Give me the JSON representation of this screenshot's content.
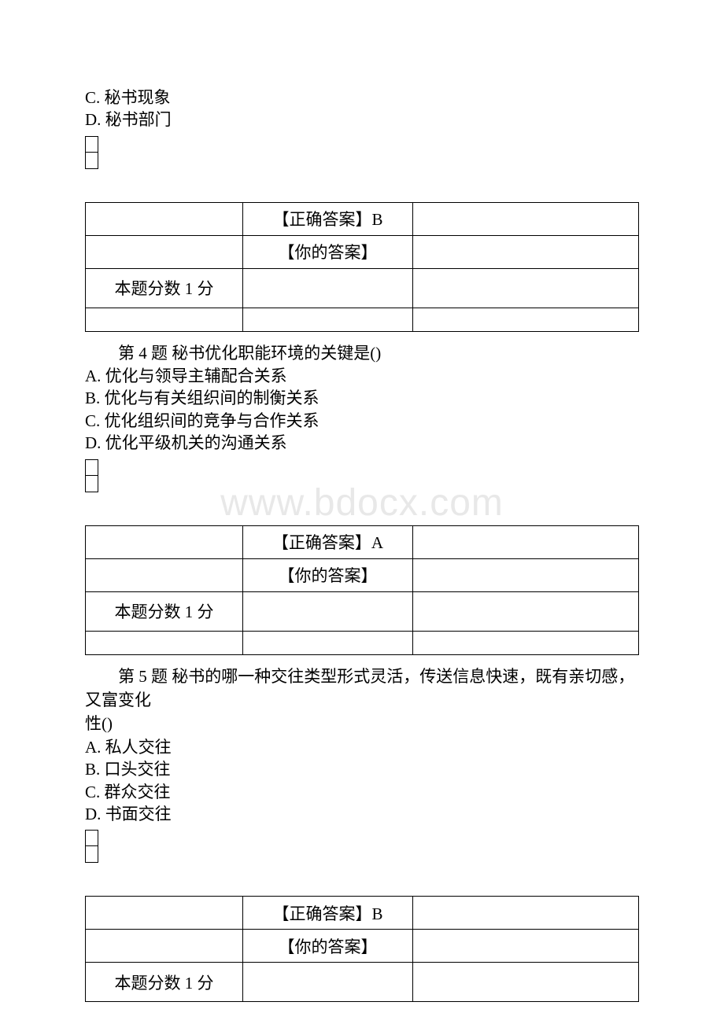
{
  "watermark": "www.bdocx.com",
  "q3_partial": {
    "optC": "C. 秘书现象",
    "optD": "D. 秘书部门"
  },
  "q4": {
    "title": "第 4 题 秘书优化职能环境的关键是()",
    "optA": "A. 优化与领导主辅配合关系",
    "optB": "B. 优化与有关组织间的制衡关系",
    "optC": "C. 优化组织间的竞争与合作关系",
    "optD": "D. 优化平级机关的沟通关系"
  },
  "q5": {
    "title_line1": "第 5 题 秘书的哪一种交往类型形式灵活，传送信息快速，既有亲切感，又富变化",
    "title_line2": "性()",
    "optA": "A. 私人交往",
    "optB": "B. 口头交往",
    "optC": "C. 群众交往",
    "optD": "D. 书面交往"
  },
  "answer_labels": {
    "correct": "【正确答案】",
    "yours": "【你的答案】",
    "score": "本题分数 1 分"
  },
  "answers": {
    "q3": "B",
    "q4": "A",
    "q5": "B"
  }
}
